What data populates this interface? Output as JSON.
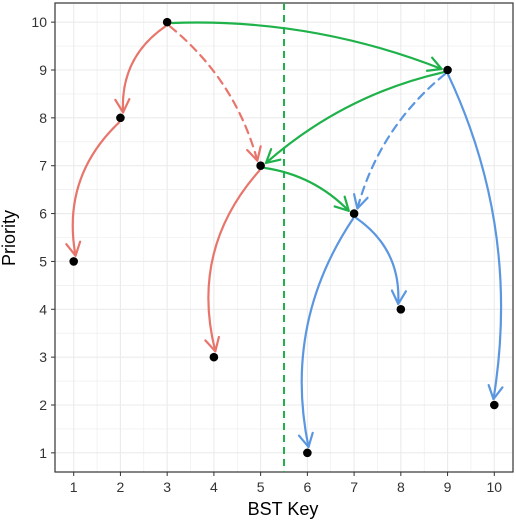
{
  "chart_data": {
    "type": "scatter",
    "xlabel": "BST Key",
    "ylabel": "Priority",
    "xlim": [
      0.6,
      10.4
    ],
    "ylim": [
      0.6,
      10.4
    ],
    "x_ticks": [
      1,
      2,
      3,
      4,
      5,
      6,
      7,
      8,
      9,
      10
    ],
    "y_ticks": [
      1,
      2,
      3,
      4,
      5,
      6,
      7,
      8,
      9,
      10
    ],
    "grid": true,
    "background": "#ffffff",
    "grid_color": "#ebebeb",
    "points": [
      {
        "x": 1,
        "y": 5
      },
      {
        "x": 2,
        "y": 8
      },
      {
        "x": 3,
        "y": 10
      },
      {
        "x": 4,
        "y": 3
      },
      {
        "x": 5,
        "y": 7
      },
      {
        "x": 6,
        "y": 1
      },
      {
        "x": 7,
        "y": 6
      },
      {
        "x": 8,
        "y": 4
      },
      {
        "x": 9,
        "y": 9
      },
      {
        "x": 10,
        "y": 2
      }
    ],
    "point_color": "#000000",
    "vline": {
      "x": 5.5,
      "color": "#1fb24a",
      "style": "dashed"
    },
    "edges": [
      {
        "from": [
          3,
          10
        ],
        "to": [
          2,
          8
        ],
        "color": "#e8756b",
        "style": "solid",
        "curvature": 0.25
      },
      {
        "from": [
          2,
          8
        ],
        "to": [
          1,
          5
        ],
        "color": "#e8756b",
        "style": "solid",
        "curvature": 0.25
      },
      {
        "from": [
          3,
          10
        ],
        "to": [
          5,
          7
        ],
        "color": "#e8756b",
        "style": "dashed",
        "curvature": -0.15
      },
      {
        "from": [
          5,
          7
        ],
        "to": [
          4,
          3
        ],
        "color": "#e8756b",
        "style": "solid",
        "curvature": 0.25
      },
      {
        "from": [
          3,
          10
        ],
        "to": [
          9,
          9
        ],
        "color": "#1fb24a",
        "style": "solid",
        "curvature": -0.1
      },
      {
        "from": [
          9,
          9
        ],
        "to": [
          5,
          7
        ],
        "color": "#1fb24a",
        "style": "solid",
        "curvature": 0.12
      },
      {
        "from": [
          5,
          7
        ],
        "to": [
          7,
          6
        ],
        "color": "#1fb24a",
        "style": "solid",
        "curvature": -0.15
      },
      {
        "from": [
          9,
          9
        ],
        "to": [
          7,
          6
        ],
        "color": "#5b97e0",
        "style": "dashed",
        "curvature": 0.15
      },
      {
        "from": [
          7,
          6
        ],
        "to": [
          6,
          1
        ],
        "color": "#5b97e0",
        "style": "solid",
        "curvature": 0.2
      },
      {
        "from": [
          7,
          6
        ],
        "to": [
          8,
          4
        ],
        "color": "#5b97e0",
        "style": "solid",
        "curvature": -0.25
      },
      {
        "from": [
          9,
          9
        ],
        "to": [
          10,
          2
        ],
        "color": "#5b97e0",
        "style": "solid",
        "curvature": -0.15
      }
    ]
  }
}
